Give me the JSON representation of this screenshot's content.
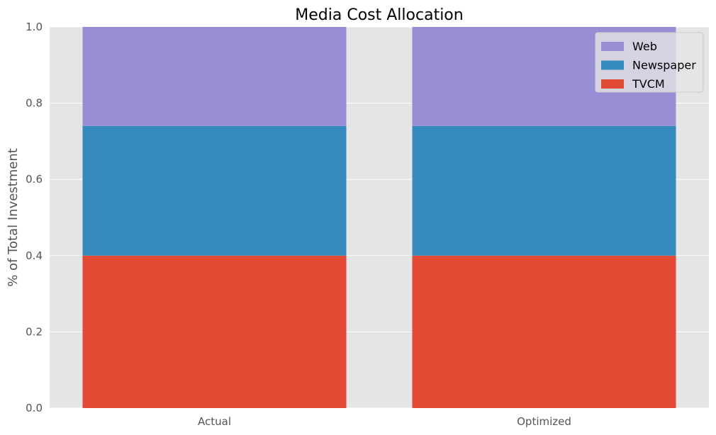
{
  "chart_data": {
    "type": "bar",
    "stacked": true,
    "title": "Media Cost Allocation",
    "xlabel": "",
    "ylabel": "% of Total Investment",
    "categories": [
      "Actual",
      "Optimized"
    ],
    "ylim": [
      0,
      1.0
    ],
    "yticks": [
      "0.0",
      "0.2",
      "0.4",
      "0.6",
      "0.8",
      "1.0"
    ],
    "grid": true,
    "legend_position": "top-right",
    "series": [
      {
        "name": "TVCM",
        "color": "#E24A33",
        "values": [
          0.4,
          0.4
        ]
      },
      {
        "name": "Newspaper",
        "color": "#348ABD",
        "values": [
          0.34,
          0.34
        ]
      },
      {
        "name": "Web",
        "color": "#988ED5",
        "values": [
          0.26,
          0.26
        ]
      }
    ],
    "legend_order": [
      "Web",
      "Newspaper",
      "TVCM"
    ],
    "background_color": "#E5E5E5",
    "grid_color": "#FFFFFF"
  }
}
